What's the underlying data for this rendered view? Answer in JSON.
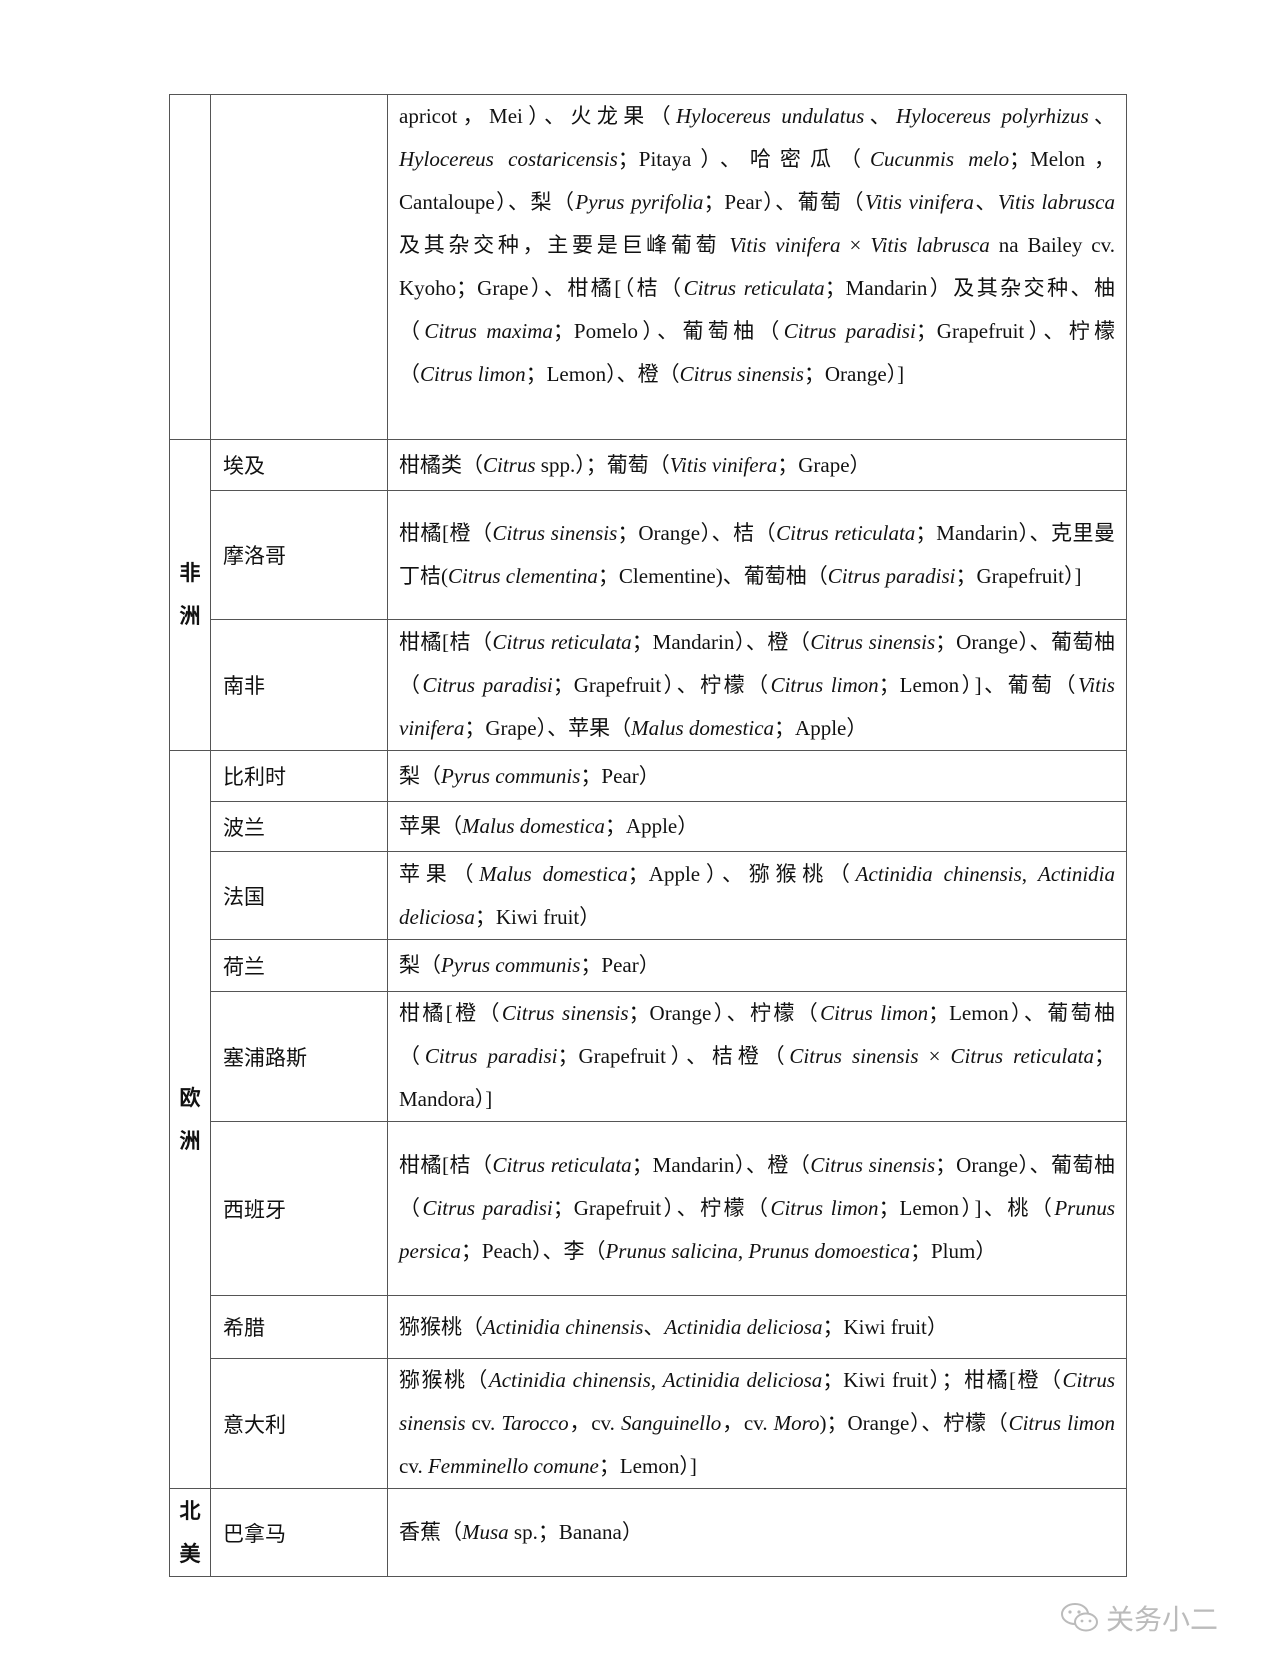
{
  "table": {
    "rows": [
      {
        "continent": "",
        "country": "",
        "fruits": "apricot，Mei）、火龙果（*Hylocereus undulatus*、*Hylocereus polyrhizus*、*Hylocereus costaricensis*；Pitaya）、哈密瓜（*Cucunmis melo*；Melon，Cantaloupe）、梨（*Pyrus pyrifolia*；Pear）、葡萄（*Vitis vinifera*、*Vitis labrusca* 及其杂交种，主要是巨峰葡萄 *Vitis vinifera* × *Vitis labrusca* na Bailey cv. Kyoho；Grape）、柑橘[（桔（*Citrus reticulata*；Mandarin）及其杂交种、柚（*Citrus maxima*；Pomelo）、葡萄柚（*Citrus paradisi*；Grapefruit）、柠檬（*Citrus limon*；Lemon）、橙（*Citrus sinensis*；Orange）]"
      },
      {
        "continent": "非洲",
        "country": "埃及",
        "fruits": "柑橘类（*Citrus* spp.）；葡萄（*Vitis vinifera*；Grape）"
      },
      {
        "country": "摩洛哥",
        "fruits": "柑橘[橙（*Citrus sinensis*；Orange）、桔（*Citrus reticulata*；Mandarin）、克里曼丁桔(*Citrus clementina*；Clementine)、葡萄柚（*Citrus paradisi*；Grapefruit）]"
      },
      {
        "country": "南非",
        "fruits": "柑橘[桔（*Citrus reticulata*；Mandarin）、橙（*Citrus sinensis*；Orange）、葡萄柚（*Citrus paradisi*；Grapefruit）、柠檬（*Citrus limon*；Lemon）]、葡萄（*Vitis vinifera*；Grape）、苹果（*Malus domestica*；Apple）"
      },
      {
        "continent": "欧洲",
        "country": "比利时",
        "fruits": "梨（*Pyrus communis*；Pear）"
      },
      {
        "country": "波兰",
        "fruits": "苹果（*Malus domestica*；Apple）"
      },
      {
        "country": "法国",
        "fruits": "苹果（*Malus domestica*；Apple）、猕猴桃（*Actinidia chinensis*, *Actinidia deliciosa*；Kiwi fruit）"
      },
      {
        "country": "荷兰",
        "fruits": "梨（*Pyrus communis*；Pear）"
      },
      {
        "country": "塞浦路斯",
        "fruits": "柑橘[橙（*Citrus sinensis*；Orange）、柠檬（*Citrus limon*；Lemon）、葡萄柚（*Citrus paradisi*；Grapefruit）、桔橙（*Citrus sinensis* × *Citrus reticulata*；Mandora）]"
      },
      {
        "country": "西班牙",
        "fruits": "柑橘[桔（*Citrus reticulata*；Mandarin）、橙（*Citrus sinensis*；Orange）、葡萄柚（*Citrus paradisi*；Grapefruit）、柠檬（*Citrus limon*；Lemon）]、桃（*Prunus persica*；Peach）、李（*Prunus salicina*, *Prunus domoestica*；Plum）"
      },
      {
        "country": "希腊",
        "fruits": "猕猴桃（*Actinidia chinensis*、*Actinidia deliciosa*；Kiwi fruit）"
      },
      {
        "country": "意大利",
        "fruits": "猕猴桃（*Actinidia chinensis*, *Actinidia deliciosa*；Kiwi fruit）；柑橘[橙（*Citrus sinensis* cv. *Tarocco*，cv. *Sanguinello*，cv. *Moro*)；Orange）、柠檬（*Citrus limon* cv. *Femminello comune*；Lemon）]"
      },
      {
        "continent": "北美",
        "country": "巴拿马",
        "fruits": "香蕉（*Musa* sp.；Banana）"
      }
    ]
  },
  "watermark": {
    "text": "关务小二",
    "icon": "wechat-icon"
  }
}
